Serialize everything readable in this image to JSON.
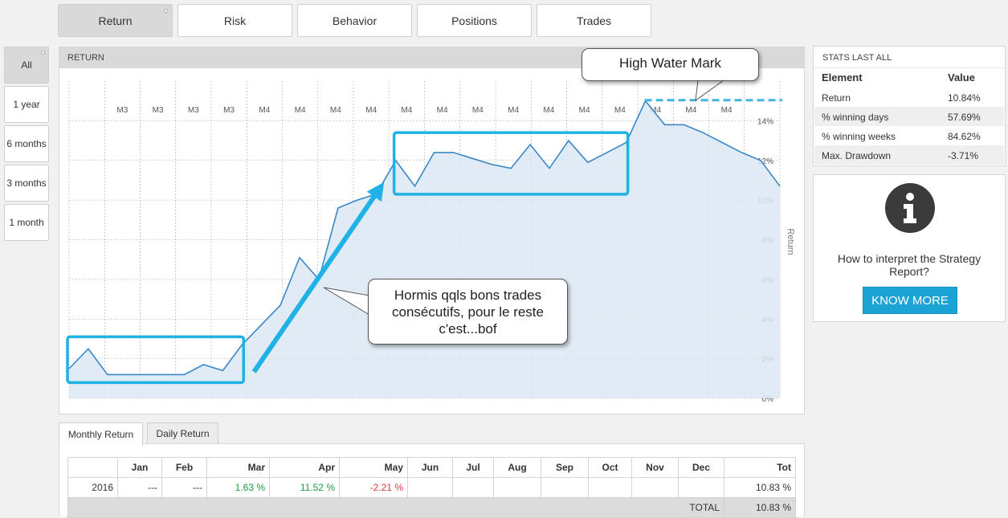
{
  "top_tabs": [
    {
      "label": "Return",
      "active": true
    },
    {
      "label": "Risk",
      "active": false
    },
    {
      "label": "Behavior",
      "active": false
    },
    {
      "label": "Positions",
      "active": false
    },
    {
      "label": "Trades",
      "active": false
    }
  ],
  "period_buttons": [
    {
      "label": "All",
      "active": true
    },
    {
      "label": "1 year",
      "active": false
    },
    {
      "label": "6 months",
      "active": false
    },
    {
      "label": "3 months",
      "active": false
    },
    {
      "label": "1 month",
      "active": false
    }
  ],
  "chart_panel": {
    "title": "RETURN"
  },
  "chart_data": {
    "type": "area",
    "title": "RETURN",
    "ylabel": "Return",
    "y_unit": "%",
    "ylim": [
      0,
      16
    ],
    "y_ticks": [
      "0%",
      "2%",
      "4%",
      "6%",
      "8%",
      "10%",
      "12%",
      "14%"
    ],
    "x_tick_labels": [
      "M3",
      "M3",
      "M3",
      "M3",
      "M4",
      "M4",
      "M4",
      "M4",
      "M4",
      "M4",
      "M4",
      "M4",
      "M4",
      "M4",
      "M4",
      "M4",
      "M4",
      "M4"
    ],
    "grid": true,
    "series": [
      {
        "color": "#3a87c8",
        "fill": "#dce8f4",
        "values": [
          1.5,
          2.5,
          1.2,
          1.2,
          1.2,
          1.2,
          1.2,
          1.7,
          1.4,
          2.7,
          3.7,
          4.7,
          7.1,
          6.0,
          9.6,
          10.0,
          10.3,
          12.0,
          10.7,
          12.4,
          12.4,
          12.1,
          11.8,
          11.6,
          12.8,
          11.6,
          13.0,
          11.9,
          12.4,
          12.9,
          15.0,
          13.8,
          13.8,
          13.4,
          12.9,
          12.4,
          12.0,
          10.7
        ]
      }
    ],
    "high_water_mark": 15.0,
    "boxed_segments": [
      {
        "from_index": 0,
        "to_index": 9
      },
      {
        "from_index": 17,
        "to_index": 29
      }
    ]
  },
  "annotations": {
    "high_water_mark": "High Water Mark",
    "note_line1": "Hormis qqls bons trades",
    "note_line2": "consécutifs, pour le reste",
    "note_line3": "c'est...bof"
  },
  "stats": {
    "title": "STATS LAST ALL",
    "header": {
      "element": "Element",
      "value": "Value"
    },
    "rows": [
      {
        "element": "Return",
        "value": "10.84%"
      },
      {
        "element": "% winning days",
        "value": "57.69%"
      },
      {
        "element": "% winning weeks",
        "value": "84.62%"
      },
      {
        "element": "Max. Drawdown",
        "value": "-3.71%"
      }
    ]
  },
  "info": {
    "icon": "info-icon",
    "text": "How to interpret the Strategy Report?",
    "button": "KNOW MORE",
    "button_color": "#1aa3d4"
  },
  "sub_tabs": [
    {
      "label": "Monthly Return",
      "active": true
    },
    {
      "label": "Daily Return",
      "active": false
    }
  ],
  "monthly_table": {
    "columns": [
      "",
      "Jan",
      "Feb",
      "Mar",
      "Apr",
      "May",
      "Jun",
      "Jul",
      "Aug",
      "Sep",
      "Oct",
      "Nov",
      "Dec",
      "Tot"
    ],
    "rows": [
      {
        "cells": [
          "2016",
          "---",
          "---",
          "1.63 %",
          "11.52 %",
          "-2.21 %",
          "",
          "",
          "",
          "",
          "",
          "",
          "",
          "10.83 %"
        ]
      }
    ],
    "total_label": "TOTAL",
    "total_value": "10.83 %",
    "positive_color": "#1a9e3e",
    "negative_color": "#d9383a"
  }
}
